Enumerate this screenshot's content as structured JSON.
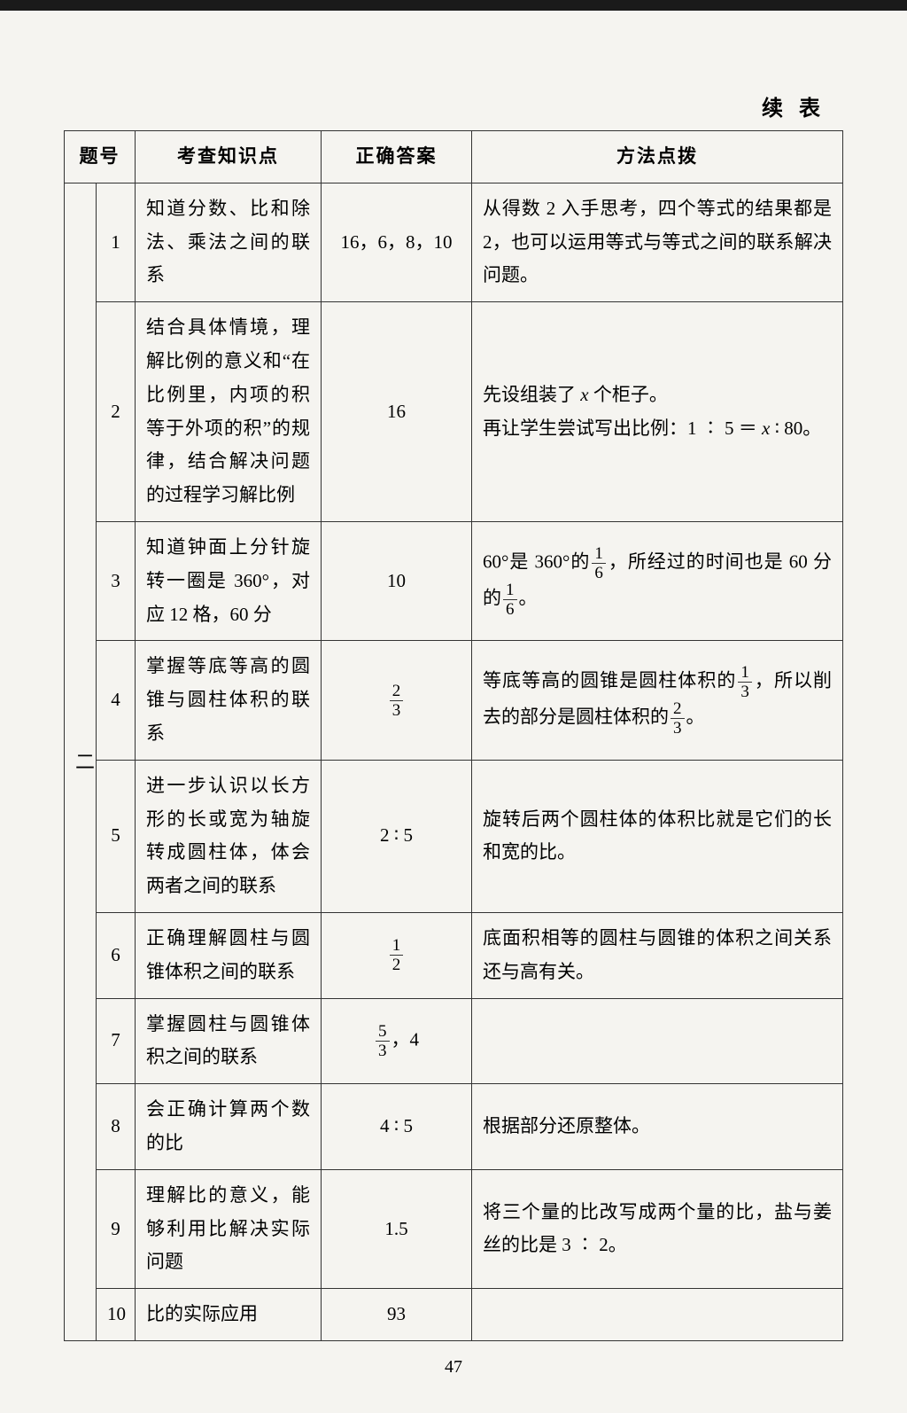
{
  "header": {
    "continued_label": "续表"
  },
  "columns": {
    "section": "题号",
    "topic": "考查知识点",
    "answer": "正确答案",
    "method": "方法点拨"
  },
  "section_label": "二",
  "rows": [
    {
      "num": "1",
      "topic": "知道分数、比和除法、乘法之间的联系",
      "answer": "16，6，8，10",
      "method": "从得数 2 入手思考，四个等式的结果都是 2，也可以运用等式与等式之间的联系解决问题。"
    },
    {
      "num": "2",
      "topic": "结合具体情境，理解比例的意义和“在比例里，内项的积等于外项的积”的规律，结合解决问题的过程学习解比例",
      "answer": "16",
      "method_prefix": "先设组装了 ",
      "method_var": "x",
      "method_mid": " 个柜子。\n再让学生尝试写出比例：1 ∶ 5 ＝ ",
      "method_var2": "x",
      "method_suffix": " ∶ 80。"
    },
    {
      "num": "3",
      "topic": "知道钟面上分针旋转一圈是 360°，对应 12 格，60 分",
      "answer": "10",
      "method_p1": "60°是 360°的",
      "method_f1n": "1",
      "method_f1d": "6",
      "method_p2": "，所经过的时间也是 60 分的",
      "method_f2n": "1",
      "method_f2d": "6",
      "method_p3": "。"
    },
    {
      "num": "4",
      "topic": "掌握等底等高的圆锥与圆柱体积的联系",
      "answer_num": "2",
      "answer_den": "3",
      "method_p1": "等底等高的圆锥是圆柱体积的",
      "method_f1n": "1",
      "method_f1d": "3",
      "method_p2": "，所以削去的部分是圆柱体积的",
      "method_f2n": "2",
      "method_f2d": "3",
      "method_p3": "。"
    },
    {
      "num": "5",
      "topic": "进一步认识以长方形的长或宽为轴旋转成圆柱体，体会两者之间的联系",
      "answer": "2 ∶ 5",
      "method": "旋转后两个圆柱体的体积比就是它们的长和宽的比。"
    },
    {
      "num": "6",
      "topic": "正确理解圆柱与圆锥体积之间的联系",
      "answer_num": "1",
      "answer_den": "2",
      "method": "底面积相等的圆柱与圆锥的体积之间关系还与高有关。"
    },
    {
      "num": "7",
      "topic": "掌握圆柱与圆锥体积之间的联系",
      "answer_num": "5",
      "answer_den": "3",
      "answer_suffix": "，4",
      "method": ""
    },
    {
      "num": "8",
      "topic": "会正确计算两个数的比",
      "answer": "4 ∶ 5",
      "method": "根据部分还原整体。"
    },
    {
      "num": "9",
      "topic": "理解比的意义，能够利用比解决实际问题",
      "answer": "1.5",
      "method": "将三个量的比改写成两个量的比，盐与姜丝的比是 3 ∶ 2。"
    },
    {
      "num": "10",
      "topic": "比的实际应用",
      "answer": "93",
      "method": ""
    }
  ],
  "page_number": "47"
}
